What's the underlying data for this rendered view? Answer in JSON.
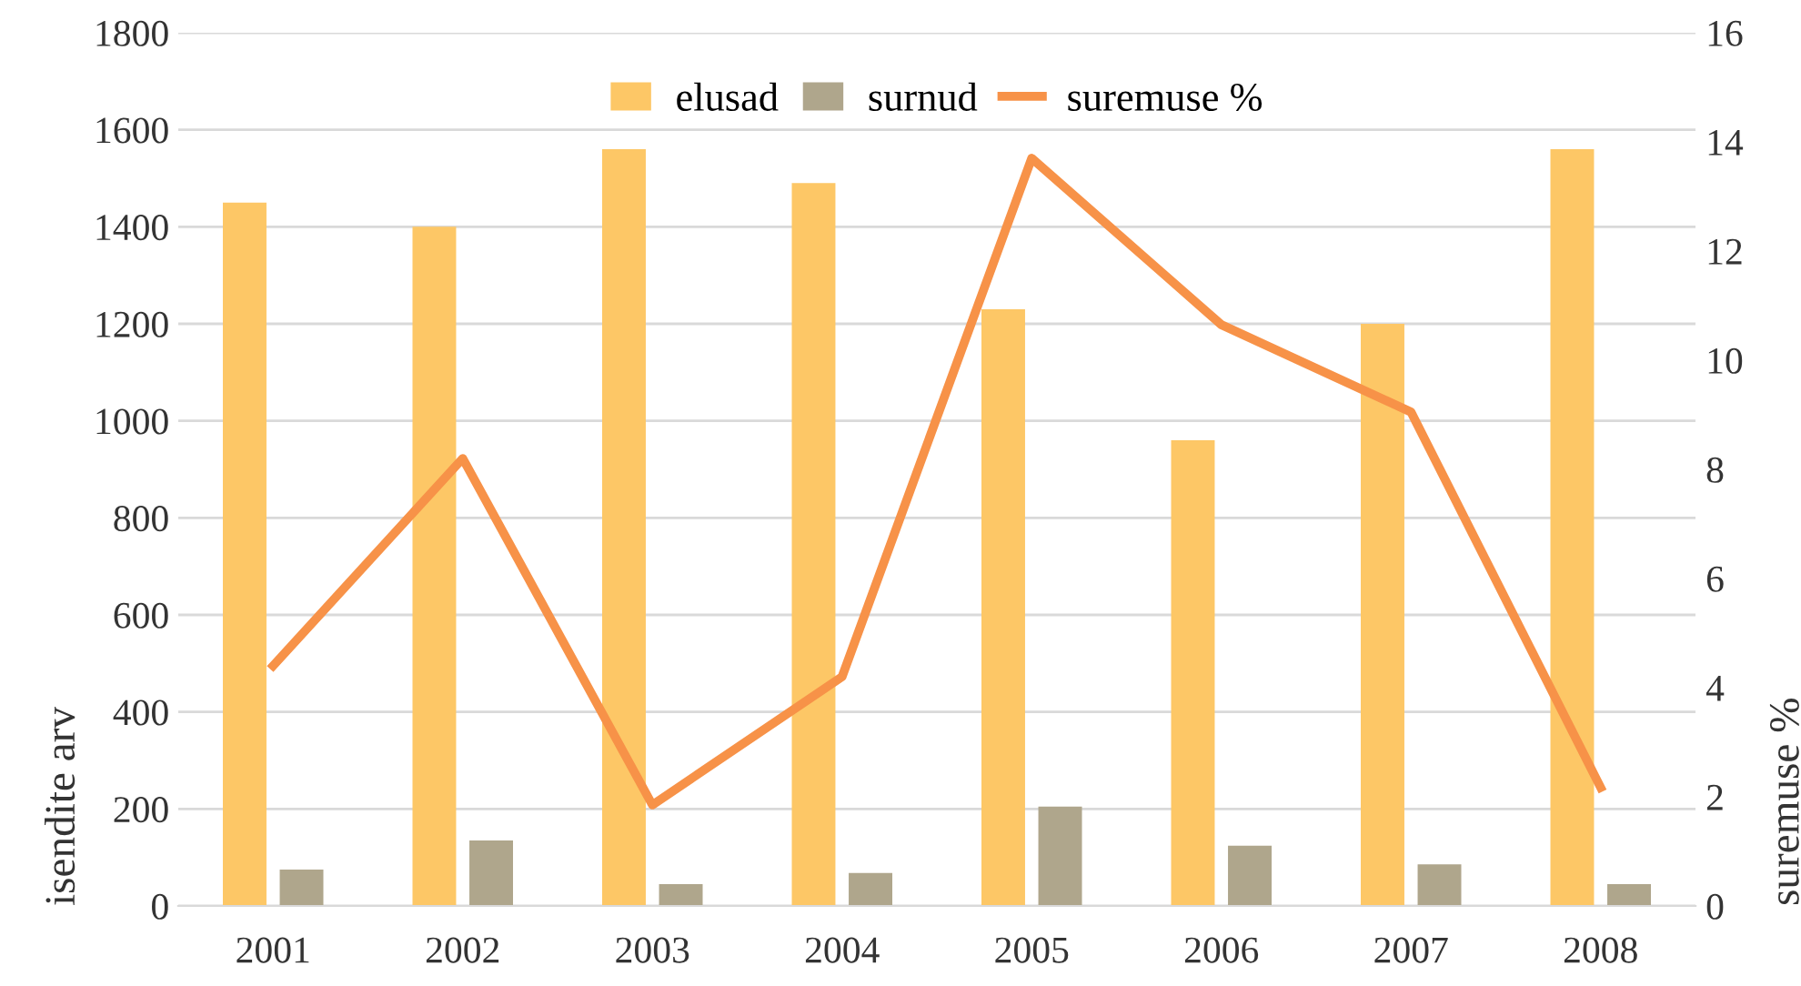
{
  "chart_data": {
    "type": "bar",
    "categories": [
      "2001",
      "2002",
      "2003",
      "2004",
      "2005",
      "2006",
      "2007",
      "2008"
    ],
    "ylabel": "isendite arv",
    "y2label": "suremuse %",
    "series": [
      {
        "name": "elusad",
        "color": "#fdc766",
        "values": [
          1450,
          1400,
          1560,
          1490,
          1230,
          960,
          1200,
          1560
        ]
      },
      {
        "name": "surnud",
        "color": "#afa68c",
        "values": [
          75,
          135,
          45,
          68,
          205,
          124,
          86,
          45
        ]
      },
      {
        "name": "suremuse %",
        "type": "line",
        "axis": "y2",
        "color": "#f79248",
        "values": [
          4.4,
          8.2,
          1.85,
          4.2,
          13.7,
          10.65,
          9.05,
          2.17
        ]
      }
    ],
    "ylim": [
      0,
      1800
    ],
    "yticks": [
      0,
      200,
      400,
      600,
      800,
      1000,
      1200,
      1400,
      1600,
      1800
    ],
    "y2lim": [
      0,
      16
    ],
    "y2ticks": [
      0,
      2,
      4,
      6,
      8,
      10,
      12,
      14,
      16
    ],
    "grid": "y",
    "legend": "top"
  }
}
